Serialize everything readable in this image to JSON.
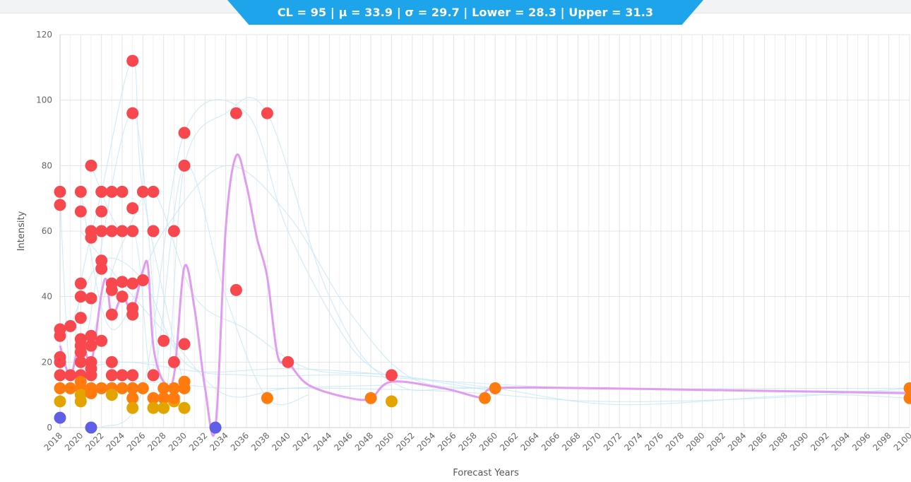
{
  "banner": {
    "cl": "CL = 95",
    "mu": "μ = 33.9",
    "sigma": "σ = 29.7",
    "lower": "Lower = 28.3",
    "upper": "Upper = 31.3",
    "sep": " | "
  },
  "colors": {
    "high": "#f8484e",
    "medium": "#ff7b0d",
    "low": "#e4a400",
    "zero": "#5e5ee6",
    "mean_line": "#e19cf2",
    "thread": "#c8e6f8",
    "grid": "#e4e4e4",
    "banner": "#1ea4ea"
  },
  "chart_data": {
    "type": "scatter",
    "title": "",
    "xlabel": "Forecast Years",
    "ylabel": "Intensity",
    "xlim": [
      2018,
      2100
    ],
    "ylim": [
      0,
      120
    ],
    "x_ticks": [
      2018,
      2020,
      2022,
      2024,
      2026,
      2028,
      2030,
      2032,
      2034,
      2036,
      2038,
      2040,
      2042,
      2044,
      2046,
      2048,
      2050,
      2052,
      2054,
      2056,
      2058,
      2060,
      2062,
      2064,
      2066,
      2068,
      2070,
      2072,
      2074,
      2076,
      2078,
      2080,
      2082,
      2084,
      2086,
      2088,
      2090,
      2092,
      2094,
      2096,
      2098,
      2100
    ],
    "y_ticks": [
      0,
      20,
      40,
      60,
      80,
      100,
      120
    ],
    "grid": true,
    "points": [
      {
        "x": 2018,
        "y": 72,
        "c": "high"
      },
      {
        "x": 2018,
        "y": 68,
        "c": "high"
      },
      {
        "x": 2018,
        "y": 30,
        "c": "high"
      },
      {
        "x": 2018,
        "y": 28,
        "c": "high"
      },
      {
        "x": 2018,
        "y": 21.5,
        "c": "high"
      },
      {
        "x": 2018,
        "y": 20,
        "c": "high"
      },
      {
        "x": 2018,
        "y": 16,
        "c": "high"
      },
      {
        "x": 2018,
        "y": 12,
        "c": "medium"
      },
      {
        "x": 2018,
        "y": 8,
        "c": "low"
      },
      {
        "x": 2018,
        "y": 3,
        "c": "zero"
      },
      {
        "x": 2019,
        "y": 31,
        "c": "high"
      },
      {
        "x": 2019,
        "y": 16,
        "c": "high"
      },
      {
        "x": 2019,
        "y": 12,
        "c": "medium"
      },
      {
        "x": 2020,
        "y": 72,
        "c": "high"
      },
      {
        "x": 2020,
        "y": 66,
        "c": "high"
      },
      {
        "x": 2020,
        "y": 44,
        "c": "high"
      },
      {
        "x": 2020,
        "y": 40,
        "c": "high"
      },
      {
        "x": 2020,
        "y": 33.5,
        "c": "high"
      },
      {
        "x": 2020,
        "y": 27,
        "c": "high"
      },
      {
        "x": 2020,
        "y": 25,
        "c": "high"
      },
      {
        "x": 2020,
        "y": 23,
        "c": "high"
      },
      {
        "x": 2020,
        "y": 20,
        "c": "high"
      },
      {
        "x": 2020,
        "y": 16,
        "c": "high"
      },
      {
        "x": 2020,
        "y": 14,
        "c": "medium"
      },
      {
        "x": 2020,
        "y": 12,
        "c": "medium"
      },
      {
        "x": 2020,
        "y": 10,
        "c": "low"
      },
      {
        "x": 2020,
        "y": 8,
        "c": "low"
      },
      {
        "x": 2021,
        "y": 80,
        "c": "high"
      },
      {
        "x": 2021,
        "y": 60,
        "c": "high"
      },
      {
        "x": 2021,
        "y": 58,
        "c": "high"
      },
      {
        "x": 2021,
        "y": 39.5,
        "c": "high"
      },
      {
        "x": 2021,
        "y": 28,
        "c": "high"
      },
      {
        "x": 2021,
        "y": 25,
        "c": "high"
      },
      {
        "x": 2021,
        "y": 20,
        "c": "high"
      },
      {
        "x": 2021,
        "y": 18,
        "c": "high"
      },
      {
        "x": 2021,
        "y": 16,
        "c": "high"
      },
      {
        "x": 2021,
        "y": 12,
        "c": "medium"
      },
      {
        "x": 2021,
        "y": 10.5,
        "c": "medium"
      },
      {
        "x": 2021,
        "y": 0,
        "c": "zero"
      },
      {
        "x": 2022,
        "y": 72,
        "c": "high"
      },
      {
        "x": 2022,
        "y": 66,
        "c": "high"
      },
      {
        "x": 2022,
        "y": 60,
        "c": "high"
      },
      {
        "x": 2022,
        "y": 51,
        "c": "high"
      },
      {
        "x": 2022,
        "y": 48.5,
        "c": "high"
      },
      {
        "x": 2022,
        "y": 26.5,
        "c": "high"
      },
      {
        "x": 2022,
        "y": 12,
        "c": "medium"
      },
      {
        "x": 2023,
        "y": 72,
        "c": "high"
      },
      {
        "x": 2023,
        "y": 60,
        "c": "high"
      },
      {
        "x": 2023,
        "y": 44,
        "c": "high"
      },
      {
        "x": 2023,
        "y": 42,
        "c": "high"
      },
      {
        "x": 2023,
        "y": 34.5,
        "c": "high"
      },
      {
        "x": 2023,
        "y": 20,
        "c": "high"
      },
      {
        "x": 2023,
        "y": 16,
        "c": "high"
      },
      {
        "x": 2023,
        "y": 12,
        "c": "medium"
      },
      {
        "x": 2023,
        "y": 10,
        "c": "low"
      },
      {
        "x": 2024,
        "y": 72,
        "c": "high"
      },
      {
        "x": 2024,
        "y": 60,
        "c": "high"
      },
      {
        "x": 2024,
        "y": 44.5,
        "c": "high"
      },
      {
        "x": 2024,
        "y": 40,
        "c": "high"
      },
      {
        "x": 2024,
        "y": 16,
        "c": "high"
      },
      {
        "x": 2024,
        "y": 12,
        "c": "medium"
      },
      {
        "x": 2025,
        "y": 112,
        "c": "high"
      },
      {
        "x": 2025,
        "y": 96,
        "c": "high"
      },
      {
        "x": 2025,
        "y": 67,
        "c": "high"
      },
      {
        "x": 2025,
        "y": 60,
        "c": "high"
      },
      {
        "x": 2025,
        "y": 44,
        "c": "high"
      },
      {
        "x": 2025,
        "y": 36.5,
        "c": "high"
      },
      {
        "x": 2025,
        "y": 34.5,
        "c": "high"
      },
      {
        "x": 2025,
        "y": 16,
        "c": "high"
      },
      {
        "x": 2025,
        "y": 12,
        "c": "medium"
      },
      {
        "x": 2025,
        "y": 9,
        "c": "medium"
      },
      {
        "x": 2025,
        "y": 6,
        "c": "low"
      },
      {
        "x": 2026,
        "y": 72,
        "c": "high"
      },
      {
        "x": 2026,
        "y": 45,
        "c": "high"
      },
      {
        "x": 2026,
        "y": 12,
        "c": "medium"
      },
      {
        "x": 2027,
        "y": 72,
        "c": "high"
      },
      {
        "x": 2027,
        "y": 60,
        "c": "high"
      },
      {
        "x": 2027,
        "y": 16,
        "c": "high"
      },
      {
        "x": 2027,
        "y": 9,
        "c": "medium"
      },
      {
        "x": 2027,
        "y": 6,
        "c": "low"
      },
      {
        "x": 2028,
        "y": 26.5,
        "c": "high"
      },
      {
        "x": 2028,
        "y": 12,
        "c": "medium"
      },
      {
        "x": 2028,
        "y": 9,
        "c": "medium"
      },
      {
        "x": 2028,
        "y": 6,
        "c": "low"
      },
      {
        "x": 2029,
        "y": 60,
        "c": "high"
      },
      {
        "x": 2029,
        "y": 20,
        "c": "high"
      },
      {
        "x": 2029,
        "y": 12,
        "c": "medium"
      },
      {
        "x": 2029,
        "y": 8,
        "c": "low"
      },
      {
        "x": 2029,
        "y": 9,
        "c": "medium"
      },
      {
        "x": 2030,
        "y": 90,
        "c": "high"
      },
      {
        "x": 2030,
        "y": 80,
        "c": "high"
      },
      {
        "x": 2030,
        "y": 25.5,
        "c": "high"
      },
      {
        "x": 2030,
        "y": 14,
        "c": "medium"
      },
      {
        "x": 2030,
        "y": 12,
        "c": "medium"
      },
      {
        "x": 2030,
        "y": 6,
        "c": "low"
      },
      {
        "x": 2033,
        "y": 0,
        "c": "zero"
      },
      {
        "x": 2035,
        "y": 96,
        "c": "high"
      },
      {
        "x": 2035,
        "y": 42,
        "c": "high"
      },
      {
        "x": 2038,
        "y": 96,
        "c": "high"
      },
      {
        "x": 2038,
        "y": 9,
        "c": "medium"
      },
      {
        "x": 2040,
        "y": 20,
        "c": "high"
      },
      {
        "x": 2048,
        "y": 9,
        "c": "medium"
      },
      {
        "x": 2050,
        "y": 16,
        "c": "high"
      },
      {
        "x": 2050,
        "y": 8,
        "c": "low"
      },
      {
        "x": 2059,
        "y": 9,
        "c": "medium"
      },
      {
        "x": 2060,
        "y": 12,
        "c": "medium"
      },
      {
        "x": 2100,
        "y": 12,
        "c": "medium"
      },
      {
        "x": 2100,
        "y": 9,
        "c": "medium"
      }
    ],
    "mean_line": {
      "x": [
        2018,
        2019,
        2020,
        2021,
        2022,
        2022.5,
        2023,
        2024,
        2025,
        2026,
        2026.5,
        2027,
        2028,
        2029,
        2030,
        2031,
        2032,
        2033,
        2034,
        2035,
        2036,
        2037,
        2038,
        2039,
        2040,
        2042,
        2046,
        2048,
        2050,
        2055,
        2059,
        2060,
        2070,
        2080,
        2090,
        2100
      ],
      "y": [
        25,
        16,
        27,
        20,
        41,
        45,
        34,
        40,
        36,
        48,
        49,
        25,
        14,
        16,
        49,
        36,
        12,
        0,
        61,
        83,
        74,
        58,
        46,
        22,
        20,
        13,
        9,
        9,
        14,
        12,
        9,
        12,
        12,
        11.5,
        11,
        10.5
      ]
    },
    "threads": [
      [
        [
          2018,
          70
        ],
        [
          2019,
          16
        ],
        [
          2020,
          44
        ],
        [
          2022,
          72
        ],
        [
          2025,
          112
        ],
        [
          2026,
          72
        ],
        [
          2030,
          12
        ]
      ],
      [
        [
          2020,
          16
        ],
        [
          2025,
          96
        ],
        [
          2028,
          10
        ],
        [
          2030,
          80
        ],
        [
          2034,
          96
        ],
        [
          2038,
          96
        ],
        [
          2044,
          40
        ],
        [
          2050,
          14
        ],
        [
          2060,
          12
        ],
        [
          2100,
          12
        ]
      ],
      [
        [
          2021,
          80
        ],
        [
          2024,
          60
        ],
        [
          2027,
          72
        ],
        [
          2031,
          40
        ],
        [
          2036,
          30
        ],
        [
          2042,
          18
        ],
        [
          2050,
          16
        ],
        [
          2060,
          11
        ]
      ],
      [
        [
          2022,
          0
        ],
        [
          2026,
          12
        ],
        [
          2030,
          90
        ],
        [
          2036,
          96
        ],
        [
          2040,
          60
        ],
        [
          2046,
          25
        ],
        [
          2050,
          15
        ]
      ],
      [
        [
          2020,
          72
        ],
        [
          2023,
          30
        ],
        [
          2028,
          60
        ],
        [
          2034,
          80
        ],
        [
          2040,
          65
        ],
        [
          2046,
          35
        ],
        [
          2052,
          15
        ],
        [
          2060,
          12
        ]
      ],
      [
        [
          2018,
          16
        ],
        [
          2024,
          20
        ],
        [
          2032,
          17
        ],
        [
          2040,
          18
        ],
        [
          2050,
          16
        ],
        [
          2060,
          12
        ],
        [
          2072,
          7
        ],
        [
          2090,
          10
        ],
        [
          2100,
          9
        ]
      ],
      [
        [
          2019,
          31
        ],
        [
          2022,
          51
        ],
        [
          2026,
          45
        ],
        [
          2030,
          20
        ],
        [
          2036,
          16
        ],
        [
          2046,
          16
        ],
        [
          2056,
          14
        ],
        [
          2070,
          12
        ],
        [
          2100,
          11
        ]
      ],
      [
        [
          2018,
          12
        ],
        [
          2026,
          14
        ],
        [
          2034,
          12
        ],
        [
          2044,
          12
        ],
        [
          2056,
          11
        ],
        [
          2070,
          8
        ],
        [
          2086,
          9
        ],
        [
          2100,
          12
        ]
      ],
      [
        [
          2020,
          60
        ],
        [
          2024,
          44
        ],
        [
          2029,
          26
        ],
        [
          2034,
          10
        ],
        [
          2040,
          12
        ],
        [
          2050,
          13
        ]
      ],
      [
        [
          2021,
          27
        ],
        [
          2025,
          60
        ],
        [
          2027,
          16
        ],
        [
          2030,
          80
        ],
        [
          2034,
          40
        ],
        [
          2038,
          9
        ],
        [
          2042,
          10
        ]
      ]
    ]
  }
}
